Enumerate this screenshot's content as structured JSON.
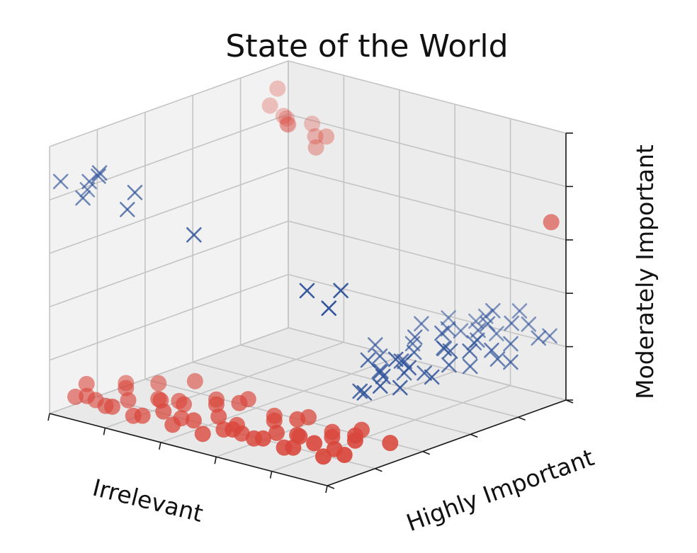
{
  "chart_data": {
    "type": "scatter",
    "projection": "3d",
    "title": "State of the World",
    "xlabel": "Irrelevant",
    "ylabel": "Highly Important",
    "zlabel": "Moderately Important",
    "grid": true,
    "tick_labels": "hidden",
    "xlim": [
      0,
      1
    ],
    "ylim": [
      0,
      1
    ],
    "zlim": [
      0,
      1
    ],
    "series": [
      {
        "marker": "circle",
        "color": "#d9463b",
        "points": [
          [
            0.05,
            0.05,
            0.06
          ],
          [
            0.1,
            0.04,
            0.08
          ],
          [
            0.15,
            0.06,
            0.05
          ],
          [
            0.2,
            0.03,
            0.07
          ],
          [
            0.25,
            0.06,
            0.04
          ],
          [
            0.3,
            0.04,
            0.06
          ],
          [
            0.35,
            0.07,
            0.08
          ],
          [
            0.4,
            0.05,
            0.05
          ],
          [
            0.45,
            0.08,
            0.07
          ],
          [
            0.5,
            0.06,
            0.04
          ],
          [
            0.55,
            0.09,
            0.06
          ],
          [
            0.6,
            0.07,
            0.08
          ],
          [
            0.65,
            0.1,
            0.05
          ],
          [
            0.7,
            0.08,
            0.07
          ],
          [
            0.75,
            0.11,
            0.04
          ],
          [
            0.8,
            0.09,
            0.06
          ],
          [
            0.85,
            0.12,
            0.08
          ],
          [
            0.9,
            0.1,
            0.05
          ],
          [
            0.95,
            0.13,
            0.06
          ],
          [
            0.08,
            0.1,
            0.04
          ],
          [
            0.18,
            0.12,
            0.06
          ],
          [
            0.28,
            0.14,
            0.08
          ],
          [
            0.38,
            0.11,
            0.05
          ],
          [
            0.48,
            0.15,
            0.07
          ],
          [
            0.58,
            0.13,
            0.04
          ],
          [
            0.68,
            0.16,
            0.06
          ],
          [
            0.78,
            0.14,
            0.08
          ],
          [
            0.88,
            0.17,
            0.05
          ],
          [
            0.12,
            0.18,
            0.07
          ],
          [
            0.22,
            0.2,
            0.05
          ],
          [
            0.32,
            0.19,
            0.06
          ],
          [
            0.42,
            0.21,
            0.08
          ],
          [
            0.52,
            0.18,
            0.04
          ],
          [
            0.62,
            0.22,
            0.07
          ],
          [
            0.72,
            0.2,
            0.05
          ],
          [
            0.82,
            0.23,
            0.06
          ],
          [
            0.92,
            0.21,
            0.08
          ],
          [
            0.06,
            0.25,
            0.05
          ],
          [
            0.16,
            0.27,
            0.07
          ],
          [
            0.26,
            0.24,
            0.04
          ],
          [
            0.36,
            0.28,
            0.06
          ],
          [
            0.46,
            0.26,
            0.08
          ],
          [
            0.56,
            0.29,
            0.05
          ],
          [
            0.66,
            0.27,
            0.07
          ],
          [
            0.76,
            0.3,
            0.04
          ],
          [
            0.86,
            0.28,
            0.06
          ],
          [
            0.96,
            0.31,
            0.05
          ],
          [
            0.03,
            0.12,
            0.08
          ],
          [
            0.44,
            0.32,
            0.07
          ],
          [
            0.64,
            0.34,
            0.05
          ],
          [
            0.84,
            0.33,
            0.06
          ],
          [
            0.24,
            0.33,
            0.08
          ],
          [
            0.99,
            0.95,
            0.68
          ],
          [
            0.03,
            0.92,
            0.93
          ],
          [
            0.02,
            0.9,
            0.87
          ],
          [
            0.0,
            0.98,
            0.8
          ],
          [
            0.02,
            0.97,
            0.8
          ],
          [
            0.04,
            0.95,
            0.79
          ],
          [
            0.2,
            0.88,
            0.81
          ],
          [
            0.24,
            0.88,
            0.82
          ],
          [
            0.22,
            0.86,
            0.78
          ],
          [
            0.12,
            0.96,
            0.81
          ],
          [
            0.06,
            0.93,
            0.8
          ]
        ]
      },
      {
        "marker": "x",
        "color": "#30539a",
        "points": [
          [
            0.97,
            0.34,
            0.25
          ],
          [
            0.9,
            0.35,
            0.27
          ],
          [
            0.85,
            0.4,
            0.26
          ],
          [
            0.95,
            0.4,
            0.3
          ],
          [
            0.88,
            0.45,
            0.29
          ],
          [
            0.92,
            0.5,
            0.24
          ],
          [
            0.84,
            0.55,
            0.28
          ],
          [
            0.99,
            0.45,
            0.26
          ],
          [
            0.8,
            0.6,
            0.31
          ],
          [
            0.94,
            0.58,
            0.25
          ],
          [
            0.86,
            0.65,
            0.27
          ],
          [
            0.98,
            0.62,
            0.3
          ],
          [
            0.82,
            0.7,
            0.24
          ],
          [
            0.91,
            0.72,
            0.28
          ],
          [
            0.87,
            0.78,
            0.26
          ],
          [
            0.96,
            0.76,
            0.22
          ],
          [
            0.83,
            0.83,
            0.27
          ],
          [
            0.93,
            0.85,
            0.24
          ],
          [
            0.89,
            0.9,
            0.29
          ],
          [
            0.97,
            0.92,
            0.25
          ],
          [
            0.81,
            0.93,
            0.22
          ],
          [
            0.9,
            0.96,
            0.27
          ],
          [
            0.95,
            0.99,
            0.23
          ],
          [
            0.85,
            0.98,
            0.3
          ],
          [
            0.8,
            0.45,
            0.23
          ],
          [
            0.76,
            0.5,
            0.26
          ],
          [
            0.78,
            0.58,
            0.22
          ],
          [
            0.74,
            0.66,
            0.25
          ],
          [
            0.79,
            0.75,
            0.29
          ],
          [
            0.75,
            0.85,
            0.24
          ],
          [
            0.78,
            0.92,
            0.28
          ],
          [
            0.86,
            0.3,
            0.22
          ],
          [
            0.92,
            0.38,
            0.33
          ],
          [
            0.88,
            0.62,
            0.34
          ],
          [
            0.84,
            0.88,
            0.33
          ],
          [
            0.99,
            0.78,
            0.21
          ],
          [
            0.7,
            0.55,
            0.27
          ],
          [
            0.72,
            0.72,
            0.3
          ],
          [
            0.68,
            0.88,
            0.26
          ],
          [
            0.71,
            0.96,
            0.23
          ],
          [
            0.93,
            0.68,
            0.21
          ],
          [
            0.83,
            0.52,
            0.21
          ],
          [
            0.97,
            0.55,
            0.32
          ],
          [
            0.89,
            0.8,
            0.32
          ],
          [
            0.95,
            0.28,
            0.27
          ],
          [
            0.91,
            0.26,
            0.24
          ],
          [
            0.82,
            0.38,
            0.3
          ],
          [
            0.99,
            0.7,
            0.28
          ],
          [
            0.18,
            0.0,
            0.95
          ],
          [
            0.04,
            0.0,
            0.88
          ],
          [
            0.29,
            0.02,
            0.9
          ],
          [
            0.28,
            0.0,
            0.84
          ],
          [
            0.52,
            0.0,
            0.81
          ],
          [
            0.05,
            0.1,
            0.82
          ],
          [
            0.12,
            0.0,
            0.84
          ],
          [
            0.15,
            0.03,
            0.92
          ],
          [
            0.98,
            0.08,
            0.7
          ],
          [
            0.98,
            0.03,
            0.65
          ],
          [
            0.91,
            0.02,
            0.7
          ],
          [
            0.1,
            0.05,
            0.88
          ]
        ]
      }
    ]
  }
}
